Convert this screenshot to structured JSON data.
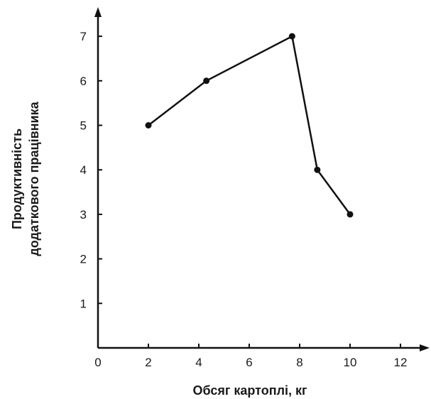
{
  "chart_data": {
    "type": "line",
    "title": "",
    "xlabel": "Обсяг картоплі, кг",
    "ylabel_lines": [
      "Продуктивність",
      "додаткового працівника"
    ],
    "xlim": [
      0,
      13
    ],
    "ylim": [
      0,
      8
    ],
    "xticks": [
      0,
      2,
      4,
      6,
      8,
      10,
      12
    ],
    "yticks": [
      1,
      2,
      3,
      4,
      5,
      6,
      7
    ],
    "grid": false,
    "series": [
      {
        "x": [
          2,
          4.3,
          7.7,
          8.7,
          10
        ],
        "y": [
          5,
          6,
          7,
          4,
          3
        ]
      }
    ]
  }
}
